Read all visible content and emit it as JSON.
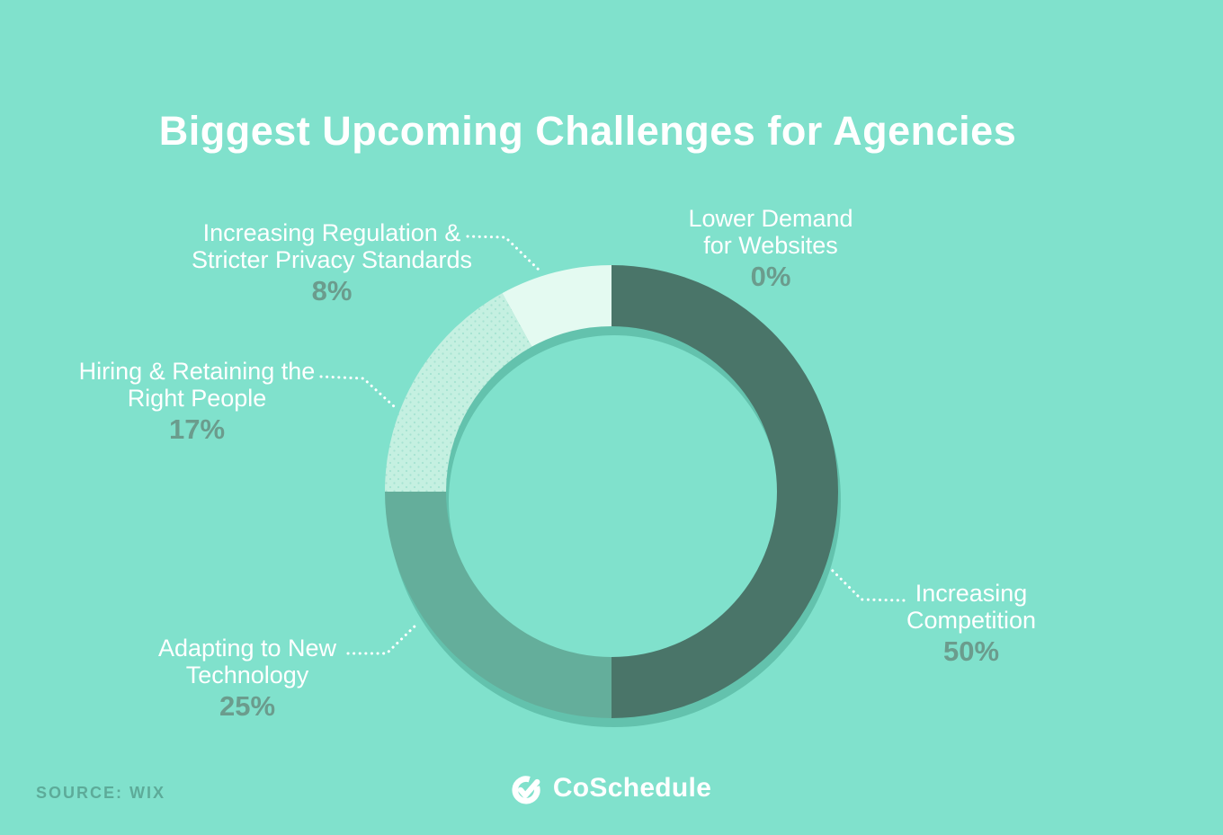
{
  "title": "Biggest Upcoming Challenges for Agencies",
  "source": {
    "label": "SOURCE: WIX"
  },
  "footer_logo": {
    "text": "CoSchedule",
    "icon": "coschedule-check-icon"
  },
  "colors": {
    "background": "#80E1CC",
    "donut_shadow": "#63C2AD",
    "label_text": "#FFFFFF",
    "percent_text": "#6B9C8D",
    "source_text": "#5DAB99",
    "leader_line": "#FFFFFF",
    "dot_pattern": "#A6E3D2"
  },
  "chart_data": {
    "type": "pie",
    "subtype": "donut",
    "title": "Biggest Upcoming Challenges for Agencies",
    "layout_hints": {
      "start_angle": "12 o'clock",
      "direction": "clockwise",
      "legend": "none",
      "labels": "outside with dotted leader lines"
    },
    "segments": [
      {
        "label": "Lower Demand for Websites",
        "label_lines": [
          "Lower Demand",
          "for Websites"
        ],
        "value": 0,
        "percent_label": "0%",
        "color": null
      },
      {
        "label": "Increasing Competition",
        "label_lines": [
          "Increasing",
          "Competition"
        ],
        "value": 50,
        "percent_label": "50%",
        "color": "#4A7569"
      },
      {
        "label": "Adapting to New Technology",
        "label_lines": [
          "Adapting to New",
          "Technology"
        ],
        "value": 25,
        "percent_label": "25%",
        "color": "#64AE9B"
      },
      {
        "label": "Hiring & Retaining the Right People",
        "label_lines": [
          "Hiring & Retaining the",
          "Right People"
        ],
        "value": 17,
        "percent_label": "17%",
        "color": "#C5F0E1",
        "pattern": "dots"
      },
      {
        "label": "Increasing Regulation & Stricter Privacy Standards",
        "label_lines": [
          "Increasing Regulation &",
          "Stricter Privacy Standards"
        ],
        "value": 8,
        "percent_label": "8%",
        "color": "#E4FAF1"
      }
    ]
  }
}
